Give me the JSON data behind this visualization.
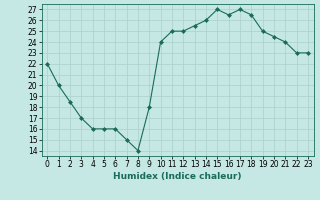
{
  "x": [
    0,
    1,
    2,
    3,
    4,
    5,
    6,
    7,
    8,
    9,
    10,
    11,
    12,
    13,
    14,
    15,
    16,
    17,
    18,
    19,
    20,
    21,
    22,
    23
  ],
  "y": [
    22,
    20,
    18.5,
    17,
    16,
    16,
    16,
    15,
    14,
    18,
    24,
    25,
    25,
    25.5,
    26,
    27,
    26.5,
    27,
    26.5,
    25,
    24.5,
    24,
    23,
    23
  ],
  "xlabel": "Humidex (Indice chaleur)",
  "xlim": [
    -0.5,
    23.5
  ],
  "ylim": [
    13.5,
    27.5
  ],
  "yticks": [
    14,
    15,
    16,
    17,
    18,
    19,
    20,
    21,
    22,
    23,
    24,
    25,
    26,
    27
  ],
  "xticks": [
    0,
    1,
    2,
    3,
    4,
    5,
    6,
    7,
    8,
    9,
    10,
    11,
    12,
    13,
    14,
    15,
    16,
    17,
    18,
    19,
    20,
    21,
    22,
    23
  ],
  "line_color": "#1a6b5a",
  "marker": "D",
  "marker_size": 2.0,
  "bg_color": "#c5e8e5",
  "grid_color": "#aad0cc",
  "xlabel_fontsize": 6.5,
  "tick_fontsize": 5.5
}
